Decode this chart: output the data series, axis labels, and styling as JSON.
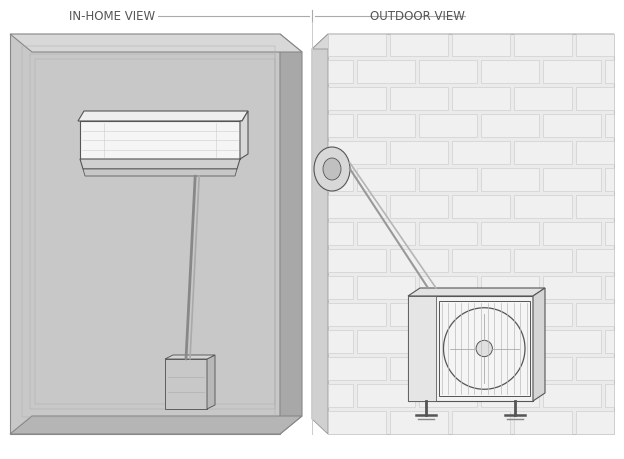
{
  "title_left": "IN-HOME VIEW",
  "title_right": "OUTDOOR VIEW",
  "title_fontsize": 8.5,
  "title_color": "#555555",
  "bg_color": "#ffffff",
  "outline_color": "#555555",
  "wall_front": "#c8c8c8",
  "wall_side": "#a8a8a8",
  "wall_top": "#d8d8d8",
  "wall_bottom": "#b5b5b5",
  "wall_inner": "#bcbcbc",
  "unit_body": "#f5f5f5",
  "unit_top": "#eeeeee",
  "unit_side": "#d8d8d8",
  "unit_louver": "#d0d0d0",
  "box_fill": "#cccccc",
  "brick_face": "#ebebeb",
  "brick_edge": "#cccccc",
  "cond_body": "#f2f2f2",
  "cond_side": "#d5d5d5",
  "cond_top": "#e2e2e2",
  "wall_edge_left": "#c0c0c0",
  "wall_edge_top": "#d5d5d5"
}
